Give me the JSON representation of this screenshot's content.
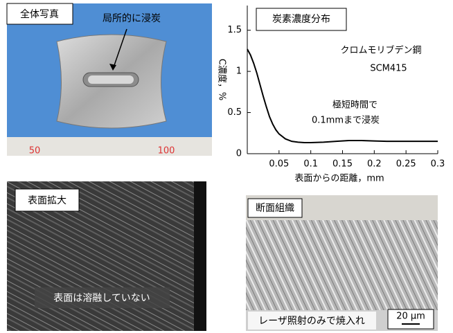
{
  "chart_data": {
    "type": "line",
    "title": "炭素濃度分布",
    "xlabel": "表面からの距離，mm",
    "ylabel": "C濃度，%",
    "x": [
      0,
      0.005,
      0.01,
      0.015,
      0.02,
      0.025,
      0.03,
      0.035,
      0.04,
      0.045,
      0.05,
      0.06,
      0.07,
      0.08,
      0.09,
      0.1,
      0.12,
      0.14,
      0.16,
      0.18,
      0.2,
      0.22,
      0.24,
      0.26,
      0.28,
      0.3
    ],
    "series": [
      {
        "color": "#000000",
        "values": [
          1.27,
          1.2,
          1.1,
          0.98,
          0.84,
          0.7,
          0.57,
          0.45,
          0.36,
          0.29,
          0.24,
          0.18,
          0.15,
          0.14,
          0.135,
          0.135,
          0.14,
          0.15,
          0.16,
          0.16,
          0.155,
          0.15,
          0.15,
          0.15,
          0.15,
          0.15
        ]
      }
    ],
    "xlim": [
      0,
      0.3
    ],
    "xticks": [
      0.05,
      0.1,
      0.15,
      0.2,
      0.25,
      0.3
    ],
    "ylim": [
      0,
      1.8
    ],
    "yticks": [
      0,
      0.5,
      1,
      1.5
    ],
    "annotations": [
      "クロムモリブデン鋼",
      "SCM415",
      "極短時間で",
      "0.1mmまで浸炭"
    ]
  },
  "panels": {
    "overview": {
      "label": "全体写真",
      "annotation": "局所的に浸炭",
      "ruler_labels": [
        "50",
        "100"
      ]
    },
    "surface": {
      "label": "表面拡大",
      "annotation": "表面は溶融していない"
    },
    "cross_section": {
      "label": "断面組織",
      "annotation": "レーザ照射のみで焼入れ",
      "scale_bar": "20 μm"
    }
  }
}
